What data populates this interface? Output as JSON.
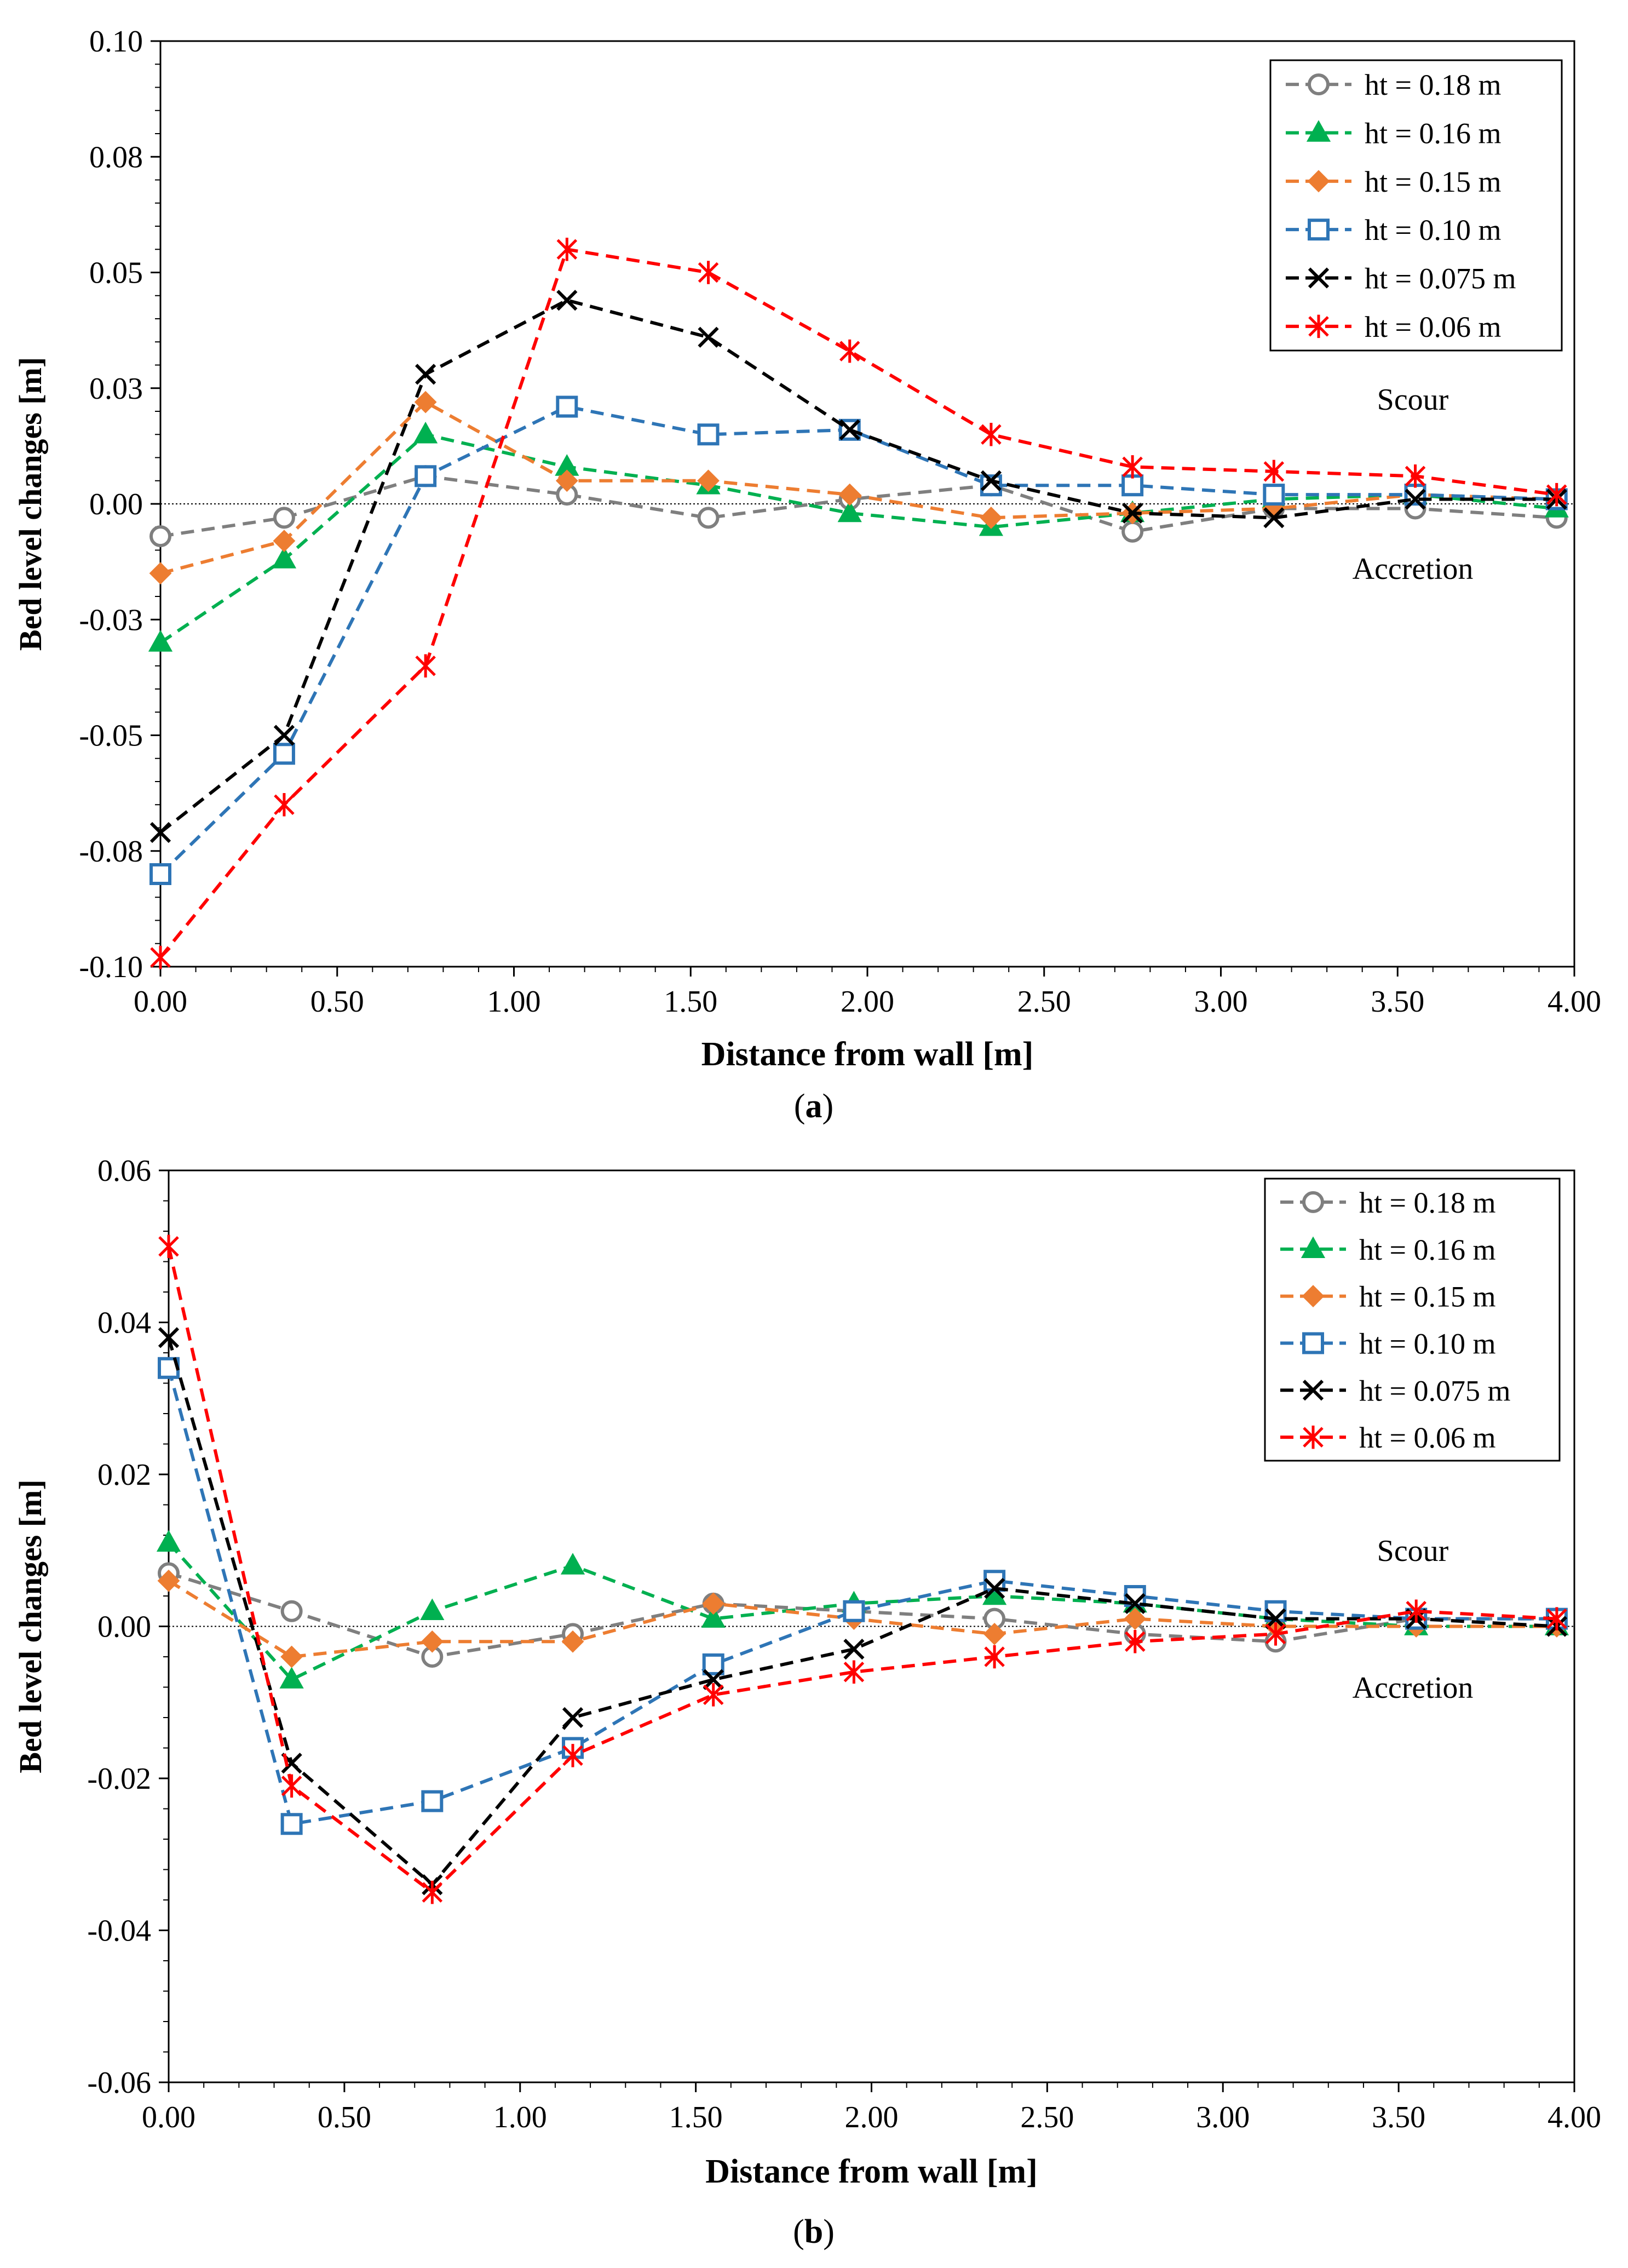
{
  "charts": [
    {
      "type": "line",
      "panel_label": "a",
      "xlabel": "Distance from wall [m]",
      "ylabel": "Bed level changes [m]",
      "xlim": [
        0,
        4
      ],
      "ylim": [
        -0.1,
        0.1
      ],
      "x_ticks": [
        "0.00",
        "0.50",
        "1.00",
        "1.50",
        "2.00",
        "2.50",
        "3.00",
        "3.50",
        "4.00"
      ],
      "y_ticks": [
        "0.10",
        "0.08",
        "0.05",
        "0.03",
        "0.00",
        "-0.03",
        "-0.05",
        "-0.08",
        "-0.10"
      ],
      "annotations": [
        "Scour",
        "Accretion"
      ],
      "x": [
        0.0,
        0.35,
        0.75,
        1.15,
        1.55,
        1.95,
        2.35,
        2.75,
        3.15,
        3.55,
        3.95
      ],
      "series": [
        {
          "name": "ht = 0.18 m",
          "color": "#7f7f7f",
          "marker": "circle-open",
          "values": [
            -0.007,
            -0.003,
            0.006,
            0.002,
            -0.003,
            0.001,
            0.004,
            -0.006,
            -0.001,
            -0.001,
            -0.003
          ]
        },
        {
          "name": "ht = 0.16 m",
          "color": "#00b050",
          "marker": "triangle",
          "values": [
            -0.03,
            -0.012,
            0.015,
            0.008,
            0.004,
            -0.002,
            -0.005,
            -0.002,
            0.001,
            0.002,
            -0.001
          ]
        },
        {
          "name": "ht = 0.15 m",
          "color": "#ed7d31",
          "marker": "diamond",
          "values": [
            -0.015,
            -0.008,
            0.022,
            0.005,
            0.005,
            0.002,
            -0.003,
            -0.002,
            -0.001,
            0.002,
            0.001
          ]
        },
        {
          "name": "ht = 0.10 m",
          "color": "#2e75b6",
          "marker": "square-open",
          "values": [
            -0.08,
            -0.054,
            0.006,
            0.021,
            0.015,
            0.016,
            0.004,
            0.004,
            0.002,
            0.002,
            0.001
          ]
        },
        {
          "name": "ht = 0.075 m",
          "color": "#000000",
          "marker": "x",
          "values": [
            -0.071,
            -0.05,
            0.028,
            0.044,
            0.036,
            0.016,
            0.005,
            -0.002,
            -0.003,
            0.001,
            0.001
          ]
        },
        {
          "name": "ht = 0.06 m",
          "color": "#ff0000",
          "marker": "star",
          "values": [
            -0.098,
            -0.065,
            -0.035,
            0.055,
            0.05,
            0.033,
            0.015,
            0.008,
            0.007,
            0.006,
            0.002
          ]
        }
      ]
    },
    {
      "type": "line",
      "panel_label": "b",
      "xlabel": "Distance from wall [m]",
      "ylabel": "Bed level changes [m]",
      "xlim": [
        0,
        4
      ],
      "ylim": [
        -0.06,
        0.06
      ],
      "x_ticks": [
        "0.00",
        "0.50",
        "1.00",
        "1.50",
        "2.00",
        "2.50",
        "3.00",
        "3.50",
        "4.00"
      ],
      "y_ticks": [
        "0.06",
        "0.04",
        "0.02",
        "0.00",
        "-0.02",
        "-0.04",
        "-0.06"
      ],
      "annotations": [
        "Scour",
        "Accretion"
      ],
      "x": [
        0.0,
        0.35,
        0.75,
        1.15,
        1.55,
        1.95,
        2.35,
        2.75,
        3.15,
        3.55,
        3.95
      ],
      "series": [
        {
          "name": "ht = 0.18 m",
          "color": "#7f7f7f",
          "marker": "circle-open",
          "values": [
            0.007,
            0.002,
            -0.004,
            -0.001,
            0.003,
            0.002,
            0.001,
            -0.001,
            -0.002,
            0.001,
            0.001
          ]
        },
        {
          "name": "ht = 0.16 m",
          "color": "#00b050",
          "marker": "triangle",
          "values": [
            0.011,
            -0.007,
            0.002,
            0.008,
            0.001,
            0.003,
            0.004,
            0.003,
            0.001,
            0.0,
            0.0
          ]
        },
        {
          "name": "ht = 0.15 m",
          "color": "#ed7d31",
          "marker": "diamond",
          "values": [
            0.006,
            -0.004,
            -0.002,
            -0.002,
            0.003,
            0.001,
            -0.001,
            0.001,
            0.0,
            0.0,
            0.0
          ]
        },
        {
          "name": "ht = 0.10 m",
          "color": "#2e75b6",
          "marker": "square-open",
          "values": [
            0.034,
            -0.026,
            -0.023,
            -0.016,
            -0.005,
            0.002,
            0.006,
            0.004,
            0.002,
            0.001,
            0.001
          ]
        },
        {
          "name": "ht = 0.075 m",
          "color": "#000000",
          "marker": "x",
          "values": [
            0.038,
            -0.018,
            -0.034,
            -0.012,
            -0.007,
            -0.003,
            0.005,
            0.003,
            0.001,
            0.001,
            0.0
          ]
        },
        {
          "name": "ht = 0.06 m",
          "color": "#ff0000",
          "marker": "star",
          "values": [
            0.05,
            -0.021,
            -0.035,
            -0.017,
            -0.009,
            -0.006,
            -0.004,
            -0.002,
            -0.001,
            0.002,
            0.001
          ]
        }
      ]
    }
  ]
}
